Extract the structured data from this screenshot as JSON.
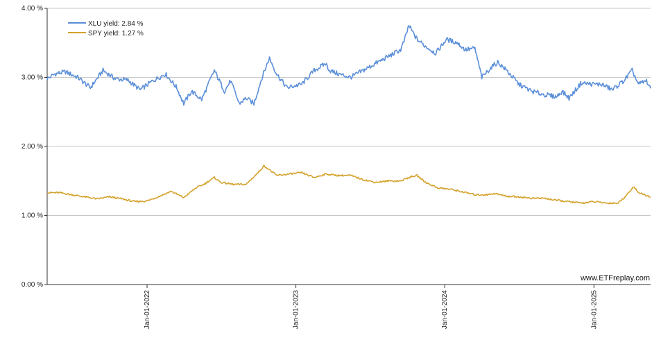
{
  "chart_data": {
    "type": "line",
    "title": "",
    "xlabel": "",
    "ylabel": "",
    "x_range": [
      "2021-05-01",
      "2025-05-20"
    ],
    "ylim": [
      0,
      4
    ],
    "y_ticks": [
      0,
      1,
      2,
      3,
      4
    ],
    "y_tick_labels": [
      "0.00 %",
      "1.00 %",
      "2.00 %",
      "3.00 %",
      "4.00 %"
    ],
    "x_ticks": [
      "2022-01-01",
      "2023-01-01",
      "2024-01-01",
      "2025-01-01"
    ],
    "x_tick_labels": [
      "Jan-01-2022",
      "Jan-01-2023",
      "Jan-01-2024",
      "Jan-01-2025"
    ],
    "grid": "horizontal",
    "legend_position": "top-left",
    "watermark": "www.ETFreplay.com",
    "series": [
      {
        "name": "XLU yield: 2.84 %",
        "color": "#5b8fd9",
        "points": [
          [
            "2021-05-01",
            2.98
          ],
          [
            "2021-05-20",
            3.05
          ],
          [
            "2021-06-15",
            3.08
          ],
          [
            "2021-07-15",
            3.0
          ],
          [
            "2021-08-15",
            2.85
          ],
          [
            "2021-09-15",
            3.1
          ],
          [
            "2021-10-15",
            2.98
          ],
          [
            "2021-11-15",
            2.96
          ],
          [
            "2021-12-15",
            2.82
          ],
          [
            "2022-01-15",
            2.95
          ],
          [
            "2022-02-15",
            3.05
          ],
          [
            "2022-03-15",
            2.85
          ],
          [
            "2022-04-01",
            2.62
          ],
          [
            "2022-04-20",
            2.8
          ],
          [
            "2022-05-15",
            2.68
          ],
          [
            "2022-06-15",
            3.1
          ],
          [
            "2022-07-10",
            2.8
          ],
          [
            "2022-07-25",
            2.95
          ],
          [
            "2022-08-15",
            2.62
          ],
          [
            "2022-09-01",
            2.7
          ],
          [
            "2022-09-20",
            2.62
          ],
          [
            "2022-10-10",
            3.0
          ],
          [
            "2022-10-28",
            3.28
          ],
          [
            "2022-11-15",
            3.05
          ],
          [
            "2022-12-10",
            2.85
          ],
          [
            "2023-01-15",
            2.9
          ],
          [
            "2023-02-15",
            3.1
          ],
          [
            "2023-03-15",
            3.2
          ],
          [
            "2023-03-25",
            3.1
          ],
          [
            "2023-04-15",
            3.05
          ],
          [
            "2023-05-15",
            3.0
          ],
          [
            "2023-06-15",
            3.1
          ],
          [
            "2023-07-15",
            3.2
          ],
          [
            "2023-08-15",
            3.3
          ],
          [
            "2023-09-15",
            3.4
          ],
          [
            "2023-09-25",
            3.55
          ],
          [
            "2023-10-05",
            3.75
          ],
          [
            "2023-10-25",
            3.55
          ],
          [
            "2023-11-15",
            3.45
          ],
          [
            "2023-12-10",
            3.35
          ],
          [
            "2024-01-05",
            3.55
          ],
          [
            "2024-02-01",
            3.5
          ],
          [
            "2024-02-20",
            3.4
          ],
          [
            "2024-03-15",
            3.42
          ],
          [
            "2024-04-01",
            3.0
          ],
          [
            "2024-04-25",
            3.15
          ],
          [
            "2024-05-10",
            3.22
          ],
          [
            "2024-06-01",
            3.1
          ],
          [
            "2024-07-01",
            2.9
          ],
          [
            "2024-08-01",
            2.8
          ],
          [
            "2024-09-01",
            2.75
          ],
          [
            "2024-10-01",
            2.72
          ],
          [
            "2024-10-15",
            2.8
          ],
          [
            "2024-11-01",
            2.7
          ],
          [
            "2024-12-01",
            2.92
          ],
          [
            "2025-01-01",
            2.9
          ],
          [
            "2025-01-20",
            2.9
          ],
          [
            "2025-02-15",
            2.82
          ],
          [
            "2025-03-15",
            2.95
          ],
          [
            "2025-04-05",
            3.1
          ],
          [
            "2025-04-20",
            2.9
          ],
          [
            "2025-05-10",
            2.95
          ],
          [
            "2025-05-20",
            2.84
          ]
        ]
      },
      {
        "name": "SPY yield: 1.27 %",
        "color": "#d4a22b",
        "points": [
          [
            "2021-05-01",
            1.33
          ],
          [
            "2021-06-01",
            1.33
          ],
          [
            "2021-07-01",
            1.3
          ],
          [
            "2021-08-01",
            1.27
          ],
          [
            "2021-09-01",
            1.24
          ],
          [
            "2021-10-01",
            1.27
          ],
          [
            "2021-11-01",
            1.24
          ],
          [
            "2021-12-01",
            1.2
          ],
          [
            "2022-01-01",
            1.21
          ],
          [
            "2022-02-01",
            1.28
          ],
          [
            "2022-03-01",
            1.35
          ],
          [
            "2022-04-01",
            1.26
          ],
          [
            "2022-05-01",
            1.4
          ],
          [
            "2022-05-20",
            1.45
          ],
          [
            "2022-06-15",
            1.55
          ],
          [
            "2022-07-01",
            1.48
          ],
          [
            "2022-08-01",
            1.45
          ],
          [
            "2022-09-01",
            1.45
          ],
          [
            "2022-09-30",
            1.62
          ],
          [
            "2022-10-15",
            1.72
          ],
          [
            "2022-11-15",
            1.58
          ],
          [
            "2022-12-15",
            1.6
          ],
          [
            "2023-01-15",
            1.62
          ],
          [
            "2023-02-15",
            1.55
          ],
          [
            "2023-03-15",
            1.6
          ],
          [
            "2023-04-15",
            1.58
          ],
          [
            "2023-05-15",
            1.58
          ],
          [
            "2023-06-15",
            1.52
          ],
          [
            "2023-07-15",
            1.48
          ],
          [
            "2023-08-15",
            1.5
          ],
          [
            "2023-09-15",
            1.5
          ],
          [
            "2023-10-05",
            1.55
          ],
          [
            "2023-10-25",
            1.58
          ],
          [
            "2023-11-15",
            1.48
          ],
          [
            "2023-12-15",
            1.4
          ],
          [
            "2024-01-15",
            1.38
          ],
          [
            "2024-02-15",
            1.34
          ],
          [
            "2024-03-15",
            1.3
          ],
          [
            "2024-04-15",
            1.3
          ],
          [
            "2024-05-01",
            1.32
          ],
          [
            "2024-06-01",
            1.28
          ],
          [
            "2024-07-01",
            1.27
          ],
          [
            "2024-08-01",
            1.25
          ],
          [
            "2024-09-01",
            1.25
          ],
          [
            "2024-10-01",
            1.22
          ],
          [
            "2024-11-01",
            1.2
          ],
          [
            "2024-12-01",
            1.18
          ],
          [
            "2025-01-01",
            1.2
          ],
          [
            "2025-02-01",
            1.18
          ],
          [
            "2025-03-01",
            1.18
          ],
          [
            "2025-03-20",
            1.28
          ],
          [
            "2025-04-08",
            1.42
          ],
          [
            "2025-04-20",
            1.33
          ],
          [
            "2025-05-20",
            1.27
          ]
        ]
      }
    ]
  }
}
